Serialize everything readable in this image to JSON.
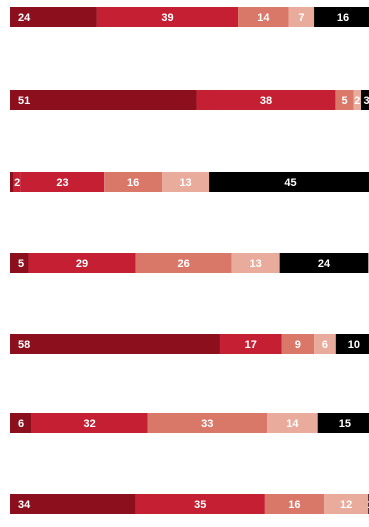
{
  "chart_data": {
    "type": "bar",
    "orientation": "horizontal",
    "stacked": true,
    "title": "",
    "xlabel": "",
    "ylabel": "",
    "legend": "none",
    "grid": false,
    "categories": [
      "",
      "",
      "",
      "",
      "",
      "",
      ""
    ],
    "colors": [
      "#8b0f1d",
      "#c41f32",
      "#d97869",
      "#e8ab9c",
      "#000000",
      "#b9b9b9"
    ],
    "rows": [
      {
        "values": [
          24,
          39,
          14,
          7,
          16
        ],
        "labels": [
          "24",
          "39",
          "14",
          "7",
          "16"
        ]
      },
      {
        "values": [
          51,
          38,
          5,
          2,
          3
        ],
        "labels": [
          "51",
          "38",
          "5",
          "2",
          "3"
        ]
      },
      {
        "values": [
          1,
          2,
          23,
          16,
          13,
          45
        ],
        "labels": [
          "",
          "2",
          "23",
          "16",
          "13",
          "45"
        ],
        "colors": [
          "#8b0f1d",
          "#c41f32",
          "#c41f32",
          "#d97869",
          "#e8ab9c",
          "#000000"
        ]
      },
      {
        "values": [
          5,
          29,
          26,
          13,
          24,
          1
        ],
        "labels": [
          "5",
          "29",
          "26",
          "13",
          "24",
          ""
        ]
      },
      {
        "values": [
          58,
          17,
          9,
          6,
          10
        ],
        "labels": [
          "58",
          "17",
          "9",
          "6",
          "10"
        ]
      },
      {
        "values": [
          6,
          32,
          33,
          14,
          15
        ],
        "labels": [
          "6",
          "32",
          "33",
          "14",
          "15"
        ]
      },
      {
        "values": [
          34,
          35,
          16,
          12,
          1
        ],
        "labels": [
          "34",
          "35",
          "16",
          "12",
          "1"
        ]
      }
    ]
  }
}
